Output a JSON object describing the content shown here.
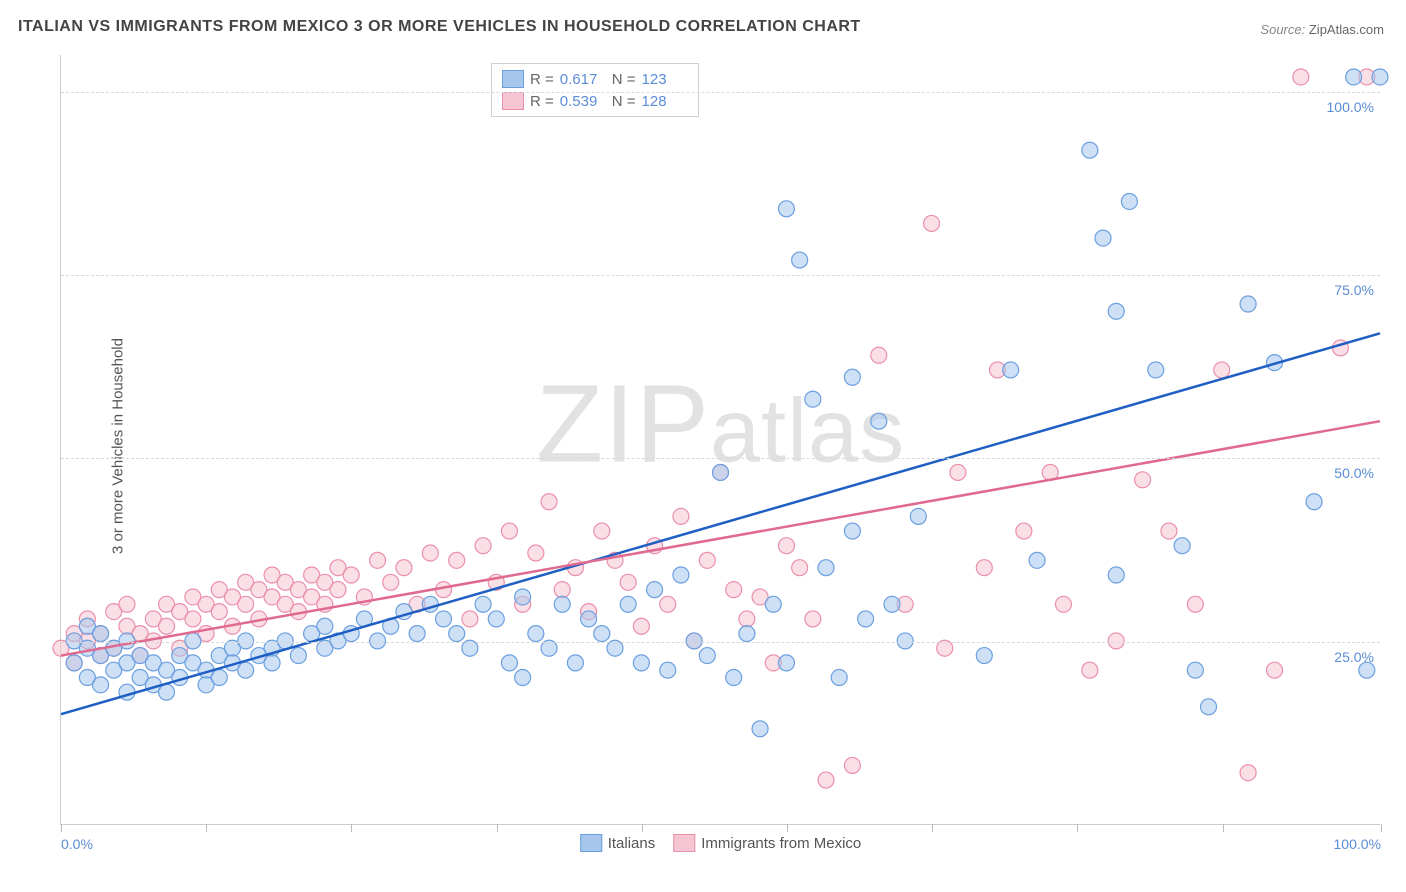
{
  "title": "ITALIAN VS IMMIGRANTS FROM MEXICO 3 OR MORE VEHICLES IN HOUSEHOLD CORRELATION CHART",
  "source_label": "Source:",
  "source_value": "ZipAtlas.com",
  "y_axis_label": "3 or more Vehicles in Household",
  "watermark": {
    "prefix": "ZIP",
    "suffix": "atlas"
  },
  "chart": {
    "type": "scatter",
    "xlim": [
      0,
      100
    ],
    "ylim": [
      0,
      105
    ],
    "point_radius": 8,
    "point_stroke_width": 1.2,
    "line_width": 2.5,
    "background_color": "#ffffff",
    "grid_color": "#d8d8d8",
    "tick_label_color": "#5b8cd6",
    "ytick_positions": [
      25,
      50,
      75,
      100
    ],
    "ytick_labels": [
      "25.0%",
      "50.0%",
      "75.0%",
      "100.0%"
    ],
    "xtick_positions": [
      0,
      11,
      22,
      33,
      44,
      55,
      66,
      77,
      88,
      100
    ],
    "xtick_labels_visible": {
      "0": "0.0%",
      "100": "100.0%"
    },
    "series": [
      {
        "name": "Italians",
        "fill_color": "#a6c6ec",
        "stroke_color": "#6a9fe0",
        "line_color": "#1f5fc4",
        "r_value": "0.617",
        "n_value": "123",
        "regression": {
          "y_at_x0": 15,
          "y_at_x100": 67
        },
        "points": [
          [
            1,
            25
          ],
          [
            1,
            22
          ],
          [
            2,
            24
          ],
          [
            2,
            27
          ],
          [
            2,
            20
          ],
          [
            3,
            23
          ],
          [
            3,
            19
          ],
          [
            3,
            26
          ],
          [
            4,
            21
          ],
          [
            4,
            24
          ],
          [
            5,
            22
          ],
          [
            5,
            18
          ],
          [
            5,
            25
          ],
          [
            6,
            20
          ],
          [
            6,
            23
          ],
          [
            7,
            19
          ],
          [
            7,
            22
          ],
          [
            8,
            21
          ],
          [
            8,
            18
          ],
          [
            9,
            20
          ],
          [
            9,
            23
          ],
          [
            10,
            22
          ],
          [
            10,
            25
          ],
          [
            11,
            21
          ],
          [
            11,
            19
          ],
          [
            12,
            23
          ],
          [
            12,
            20
          ],
          [
            13,
            24
          ],
          [
            13,
            22
          ],
          [
            14,
            21
          ],
          [
            14,
            25
          ],
          [
            15,
            23
          ],
          [
            16,
            24
          ],
          [
            16,
            22
          ],
          [
            17,
            25
          ],
          [
            18,
            23
          ],
          [
            19,
            26
          ],
          [
            20,
            24
          ],
          [
            20,
            27
          ],
          [
            21,
            25
          ],
          [
            22,
            26
          ],
          [
            23,
            28
          ],
          [
            24,
            25
          ],
          [
            25,
            27
          ],
          [
            26,
            29
          ],
          [
            27,
            26
          ],
          [
            28,
            30
          ],
          [
            29,
            28
          ],
          [
            30,
            26
          ],
          [
            31,
            24
          ],
          [
            32,
            30
          ],
          [
            33,
            28
          ],
          [
            34,
            22
          ],
          [
            35,
            20
          ],
          [
            35,
            31
          ],
          [
            36,
            26
          ],
          [
            37,
            24
          ],
          [
            38,
            30
          ],
          [
            39,
            22
          ],
          [
            40,
            28
          ],
          [
            41,
            26
          ],
          [
            42,
            24
          ],
          [
            43,
            30
          ],
          [
            44,
            22
          ],
          [
            45,
            32
          ],
          [
            46,
            21
          ],
          [
            47,
            34
          ],
          [
            48,
            25
          ],
          [
            49,
            23
          ],
          [
            50,
            48
          ],
          [
            51,
            20
          ],
          [
            52,
            26
          ],
          [
            53,
            13
          ],
          [
            54,
            30
          ],
          [
            55,
            84
          ],
          [
            55,
            22
          ],
          [
            56,
            77
          ],
          [
            57,
            58
          ],
          [
            58,
            35
          ],
          [
            59,
            20
          ],
          [
            60,
            61
          ],
          [
            60,
            40
          ],
          [
            61,
            28
          ],
          [
            62,
            55
          ],
          [
            63,
            30
          ],
          [
            64,
            25
          ],
          [
            65,
            42
          ],
          [
            70,
            23
          ],
          [
            72,
            62
          ],
          [
            74,
            36
          ],
          [
            78,
            92
          ],
          [
            79,
            80
          ],
          [
            80,
            70
          ],
          [
            80,
            34
          ],
          [
            81,
            85
          ],
          [
            83,
            62
          ],
          [
            85,
            38
          ],
          [
            86,
            21
          ],
          [
            87,
            16
          ],
          [
            90,
            71
          ],
          [
            92,
            63
          ],
          [
            95,
            44
          ],
          [
            98,
            102
          ],
          [
            99,
            21
          ],
          [
            100,
            102
          ]
        ]
      },
      {
        "name": "Immigrants from Mexico",
        "fill_color": "#f6c5d2",
        "stroke_color": "#ea8fab",
        "line_color": "#e06a8f",
        "r_value": "0.539",
        "n_value": "128",
        "regression": {
          "y_at_x0": 23,
          "y_at_x100": 55
        },
        "points": [
          [
            0,
            24
          ],
          [
            1,
            26
          ],
          [
            1,
            22
          ],
          [
            2,
            25
          ],
          [
            2,
            28
          ],
          [
            3,
            23
          ],
          [
            3,
            26
          ],
          [
            4,
            29
          ],
          [
            4,
            24
          ],
          [
            5,
            27
          ],
          [
            5,
            30
          ],
          [
            6,
            26
          ],
          [
            6,
            23
          ],
          [
            7,
            28
          ],
          [
            7,
            25
          ],
          [
            8,
            30
          ],
          [
            8,
            27
          ],
          [
            9,
            29
          ],
          [
            9,
            24
          ],
          [
            10,
            31
          ],
          [
            10,
            28
          ],
          [
            11,
            30
          ],
          [
            11,
            26
          ],
          [
            12,
            32
          ],
          [
            12,
            29
          ],
          [
            13,
            31
          ],
          [
            13,
            27
          ],
          [
            14,
            33
          ],
          [
            14,
            30
          ],
          [
            15,
            32
          ],
          [
            15,
            28
          ],
          [
            16,
            31
          ],
          [
            16,
            34
          ],
          [
            17,
            30
          ],
          [
            17,
            33
          ],
          [
            18,
            32
          ],
          [
            18,
            29
          ],
          [
            19,
            34
          ],
          [
            19,
            31
          ],
          [
            20,
            33
          ],
          [
            20,
            30
          ],
          [
            21,
            35
          ],
          [
            21,
            32
          ],
          [
            22,
            34
          ],
          [
            23,
            31
          ],
          [
            24,
            36
          ],
          [
            25,
            33
          ],
          [
            26,
            35
          ],
          [
            27,
            30
          ],
          [
            28,
            37
          ],
          [
            29,
            32
          ],
          [
            30,
            36
          ],
          [
            31,
            28
          ],
          [
            32,
            38
          ],
          [
            33,
            33
          ],
          [
            34,
            40
          ],
          [
            35,
            30
          ],
          [
            36,
            37
          ],
          [
            37,
            44
          ],
          [
            38,
            32
          ],
          [
            39,
            35
          ],
          [
            40,
            29
          ],
          [
            41,
            40
          ],
          [
            42,
            36
          ],
          [
            43,
            33
          ],
          [
            44,
            27
          ],
          [
            45,
            38
          ],
          [
            46,
            30
          ],
          [
            47,
            42
          ],
          [
            48,
            25
          ],
          [
            49,
            36
          ],
          [
            50,
            48
          ],
          [
            51,
            32
          ],
          [
            52,
            28
          ],
          [
            53,
            31
          ],
          [
            54,
            22
          ],
          [
            55,
            38
          ],
          [
            56,
            35
          ],
          [
            57,
            28
          ],
          [
            58,
            6
          ],
          [
            60,
            8
          ],
          [
            62,
            64
          ],
          [
            64,
            30
          ],
          [
            66,
            82
          ],
          [
            67,
            24
          ],
          [
            68,
            48
          ],
          [
            70,
            35
          ],
          [
            71,
            62
          ],
          [
            73,
            40
          ],
          [
            75,
            48
          ],
          [
            76,
            30
          ],
          [
            78,
            21
          ],
          [
            80,
            25
          ],
          [
            82,
            47
          ],
          [
            84,
            40
          ],
          [
            86,
            30
          ],
          [
            88,
            62
          ],
          [
            90,
            7
          ],
          [
            92,
            21
          ],
          [
            94,
            102
          ],
          [
            97,
            65
          ],
          [
            99,
            102
          ]
        ]
      }
    ],
    "legend_bottom": [
      {
        "swatch_fill": "#a6c6ec",
        "swatch_stroke": "#6a9fe0",
        "label": "Italians"
      },
      {
        "swatch_fill": "#f6c5d2",
        "swatch_stroke": "#ea8fab",
        "label": "Immigrants from Mexico"
      }
    ]
  }
}
